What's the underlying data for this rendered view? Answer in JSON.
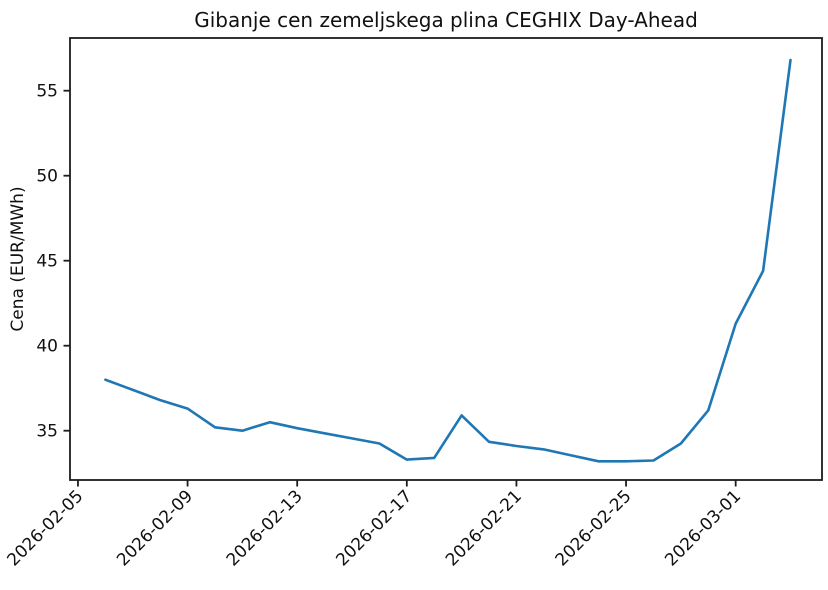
{
  "chart_data": {
    "type": "line",
    "title": "Gibanje cen zemeljskega plina CEGHIX Day-Ahead",
    "xlabel": "",
    "ylabel": "Cena (EUR/MWh)",
    "x": [
      "2026-02-06",
      "2026-02-07",
      "2026-02-08",
      "2026-02-09",
      "2026-02-10",
      "2026-02-11",
      "2026-02-12",
      "2026-02-13",
      "2026-02-14",
      "2026-02-15",
      "2026-02-16",
      "2026-02-17",
      "2026-02-18",
      "2026-02-19",
      "2026-02-20",
      "2026-02-21",
      "2026-02-22",
      "2026-02-23",
      "2026-02-24",
      "2026-02-25",
      "2026-02-26",
      "2026-02-27",
      "2026-02-28",
      "2026-03-01",
      "2026-03-02",
      "2026-03-03"
    ],
    "values": [
      38.0,
      37.4,
      36.8,
      36.3,
      35.2,
      35.0,
      35.5,
      35.15,
      34.85,
      34.55,
      34.25,
      33.3,
      33.4,
      35.9,
      34.35,
      34.1,
      33.9,
      33.55,
      33.2,
      33.2,
      33.25,
      34.25,
      36.2,
      41.3,
      44.4,
      56.8
    ],
    "x_tick_labels": [
      "2026-02-05",
      "2026-02-09",
      "2026-02-13",
      "2026-02-17",
      "2026-02-21",
      "2026-02-25",
      "2026-03-01"
    ],
    "y_ticks": [
      35,
      40,
      45,
      50,
      55
    ],
    "ylim": [
      32.1,
      58.1
    ],
    "xlim_days_rel_first_tick": [
      -0.29,
      27.15
    ],
    "x_tick_rotation_deg": 45,
    "grid": false,
    "legend": false,
    "line_color": "#1f77b4",
    "axis_color": "#1c1c1c"
  }
}
